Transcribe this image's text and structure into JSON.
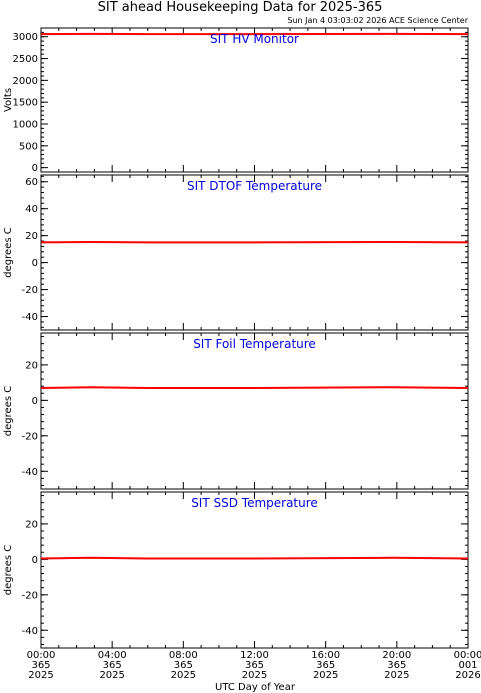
{
  "header": {
    "title": "SIT ahead Housekeeping Data for 2025-365",
    "subtitle": "Sun Jan  4 03:03:02 2026 ACE Science Center"
  },
  "xaxis": {
    "label": "UTC Day of Year",
    "ticks": [
      {
        "time": "00:00",
        "doy": "365",
        "year": "2025"
      },
      {
        "time": "04:00",
        "doy": "365",
        "year": "2025"
      },
      {
        "time": "08:00",
        "doy": "365",
        "year": "2025"
      },
      {
        "time": "12:00",
        "doy": "365",
        "year": "2025"
      },
      {
        "time": "16:00",
        "doy": "365",
        "year": "2025"
      },
      {
        "time": "20:00",
        "doy": "365",
        "year": "2025"
      },
      {
        "time": "00:00",
        "doy": "001",
        "year": "2026"
      }
    ]
  },
  "chart_data": [
    {
      "type": "line",
      "title": "SIT HV Monitor",
      "xlabel": "",
      "ylabel": "Volts",
      "xlim": [
        0,
        24
      ],
      "ylim": [
        -100,
        3200
      ],
      "yticks": [
        0,
        500,
        1000,
        1500,
        2000,
        2500,
        3000
      ],
      "color": "#ff0000",
      "series": [
        {
          "x": [
            0,
            2.8,
            6,
            12,
            19.8,
            24
          ],
          "y": [
            3060,
            3065,
            3060,
            3060,
            3065,
            3060
          ]
        }
      ]
    },
    {
      "type": "line",
      "title": "SIT DTOF Temperature",
      "xlabel": "",
      "ylabel": "degrees C",
      "xlim": [
        0,
        24
      ],
      "ylim": [
        -50,
        65
      ],
      "yticks": [
        -40,
        -20,
        0,
        20,
        40,
        60
      ],
      "color": "#ff0000",
      "series": [
        {
          "x": [
            0,
            2.8,
            6,
            12,
            19.8,
            24
          ],
          "y": [
            15,
            15.3,
            15,
            15,
            15.3,
            15
          ]
        }
      ]
    },
    {
      "type": "line",
      "title": "SIT Foil Temperature",
      "xlabel": "",
      "ylabel": "degrees C",
      "xlim": [
        0,
        24
      ],
      "ylim": [
        -50,
        38
      ],
      "yticks": [
        -40,
        -20,
        0,
        20
      ],
      "color": "#ff0000",
      "series": [
        {
          "x": [
            0,
            2.8,
            6,
            12,
            19.8,
            24
          ],
          "y": [
            7,
            7.4,
            7,
            7,
            7.4,
            7
          ]
        }
      ]
    },
    {
      "type": "line",
      "title": "SIT SSD Temperature",
      "xlabel": "",
      "ylabel": "degrees C",
      "xlim": [
        0,
        24
      ],
      "ylim": [
        -50,
        38
      ],
      "yticks": [
        -40,
        -20,
        0,
        20
      ],
      "color": "#ff0000",
      "series": [
        {
          "x": [
            0,
            2.8,
            6,
            12,
            19.8,
            24
          ],
          "y": [
            0.5,
            0.9,
            0.5,
            0.5,
            0.9,
            0.5
          ]
        }
      ]
    }
  ]
}
